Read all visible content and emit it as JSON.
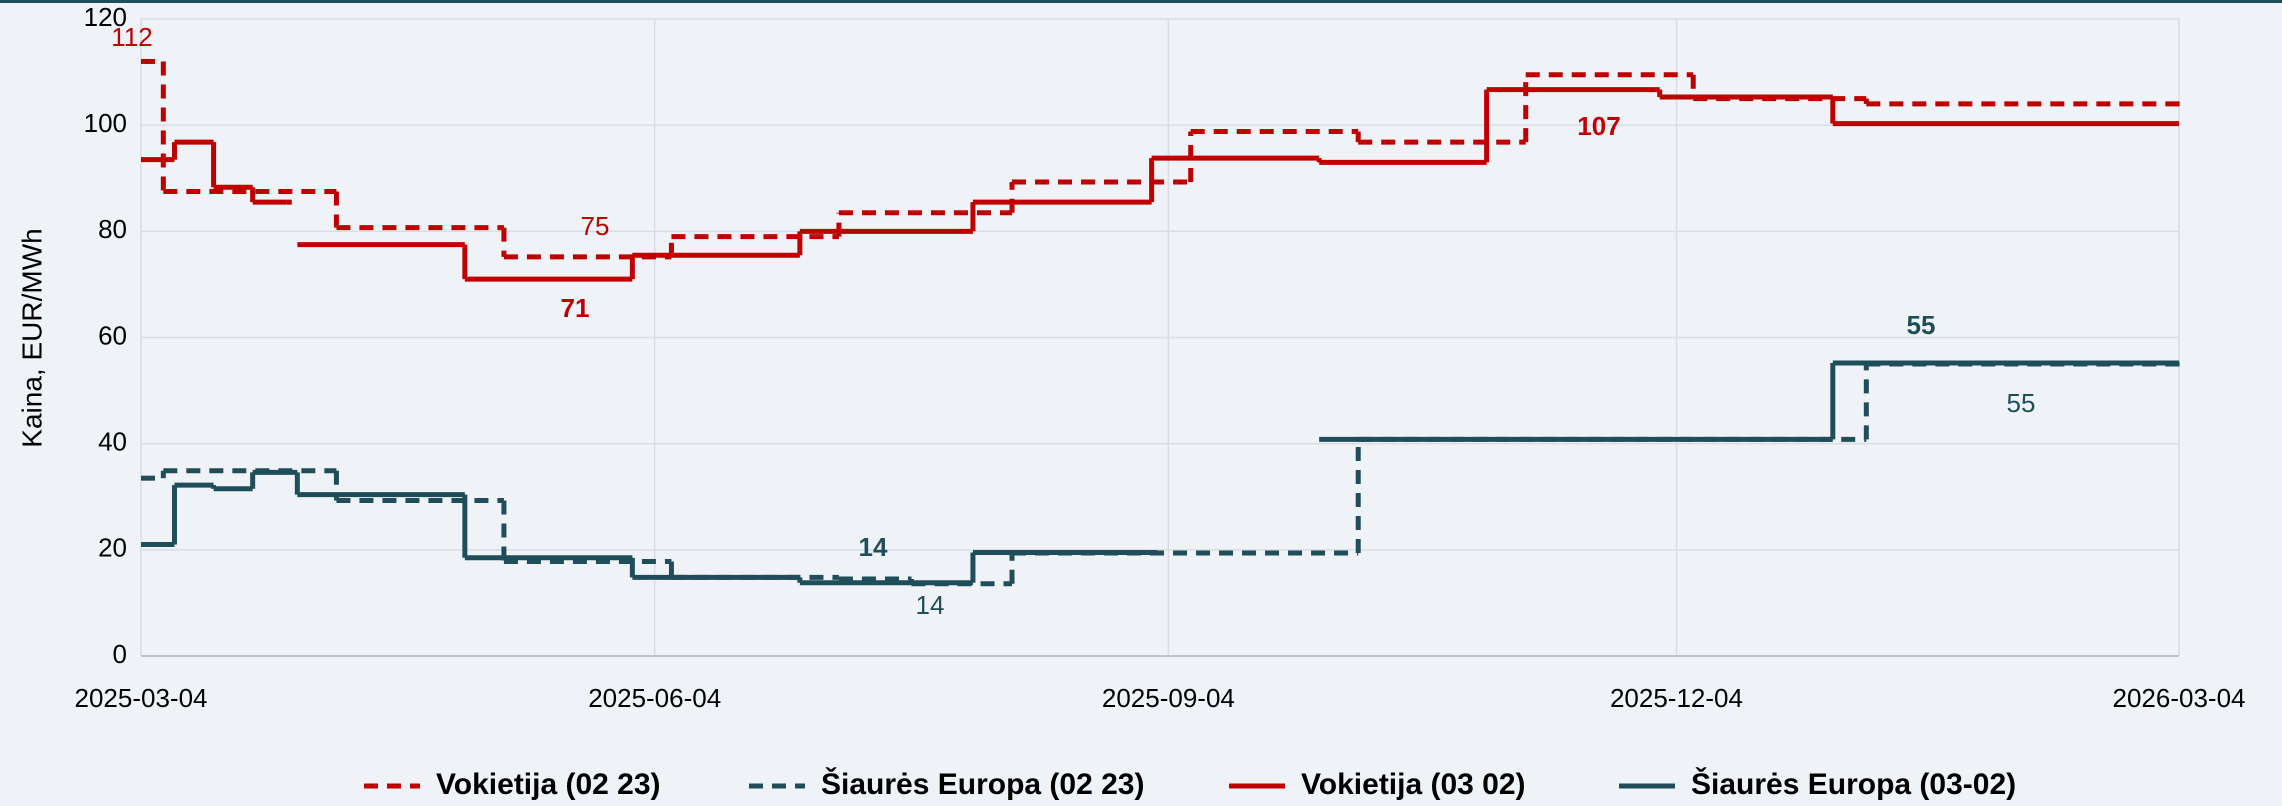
{
  "chart_data": {
    "type": "line",
    "drawstyle": "steps-post",
    "ylabel": "Kaina, EUR/MWh",
    "xlim": [
      "2025-03-04",
      "2026-03-04"
    ],
    "xticks": [
      "2025-03-04",
      "2025-06-04",
      "2025-09-04",
      "2025-12-04",
      "2026-03-04"
    ],
    "ylim": [
      0,
      120
    ],
    "yticks": [
      0,
      20,
      40,
      60,
      80,
      100,
      120
    ],
    "grid": true,
    "legend": "bottom",
    "series": [
      {
        "name": "Vokietija (02 23)",
        "color": "#c00000",
        "dashed": true,
        "x": [
          "2025-03-04",
          "2025-03-08",
          "2025-04-08",
          "2025-05-08",
          "2025-06-07",
          "2025-07-07",
          "2025-08-07",
          "2025-09-08",
          "2025-10-08",
          "2025-11-07",
          "2025-12-07",
          "2026-01-07",
          "2026-03-04"
        ],
        "values": [
          112,
          87.5,
          80.7,
          75.2,
          79,
          83.5,
          89.3,
          98.8,
          96.8,
          109.5,
          105,
          104,
          104
        ]
      },
      {
        "name": "Šiaurės Europa (02 23)",
        "color": "#1f4e5a",
        "dashed": true,
        "x": [
          "2025-03-04",
          "2025-03-08",
          "2025-04-08",
          "2025-05-08",
          "2025-06-07",
          "2025-07-07",
          "2025-07-20",
          "2025-08-07",
          "2025-10-08",
          "2026-01-07",
          "2026-03-04"
        ],
        "values": [
          33.5,
          34.9,
          29.3,
          17.8,
          14.8,
          14.5,
          13.6,
          19.4,
          40.8,
          55,
          55
        ]
      },
      {
        "name": "Vokietija (03 02)",
        "color": "#c00000",
        "dashed": false,
        "x": [
          "2025-03-04",
          "2025-03-10",
          "2025-03-17",
          "2025-03-24",
          "2025-03-30",
          "2025-03-31",
          "2025-04-01",
          "2025-05-01",
          "2025-05-31",
          "2025-06-30",
          "2025-07-31",
          "2025-09-01",
          "2025-10-01",
          "2025-10-31",
          "2025-12-01",
          "2026-01-01",
          "2026-03-04"
        ],
        "values": [
          93.5,
          96.8,
          88.3,
          85.5,
          85.5,
          null,
          77.5,
          71,
          75.5,
          80,
          85.5,
          93.8,
          93,
          106.7,
          105.3,
          100.3,
          100.3
        ]
      },
      {
        "name": "Šiaurės Europa (03-02)",
        "color": "#1f4e5a",
        "dashed": false,
        "x": [
          "2025-03-04",
          "2025-03-10",
          "2025-03-17",
          "2025-03-24",
          "2025-04-01",
          "2025-05-01",
          "2025-05-31",
          "2025-06-30",
          "2025-07-31",
          "2025-08-31",
          "2025-09-02",
          "2025-10-01",
          "2026-01-01",
          "2026-03-04"
        ],
        "values": [
          21,
          32.2,
          31.5,
          34.6,
          30.4,
          18.5,
          14.8,
          13.8,
          19.5,
          19.5,
          null,
          40.8,
          55.2,
          55.2
        ]
      }
    ],
    "annotations": [
      "112",
      "75",
      "71",
      "107",
      "55",
      "55",
      "14",
      "14"
    ]
  }
}
